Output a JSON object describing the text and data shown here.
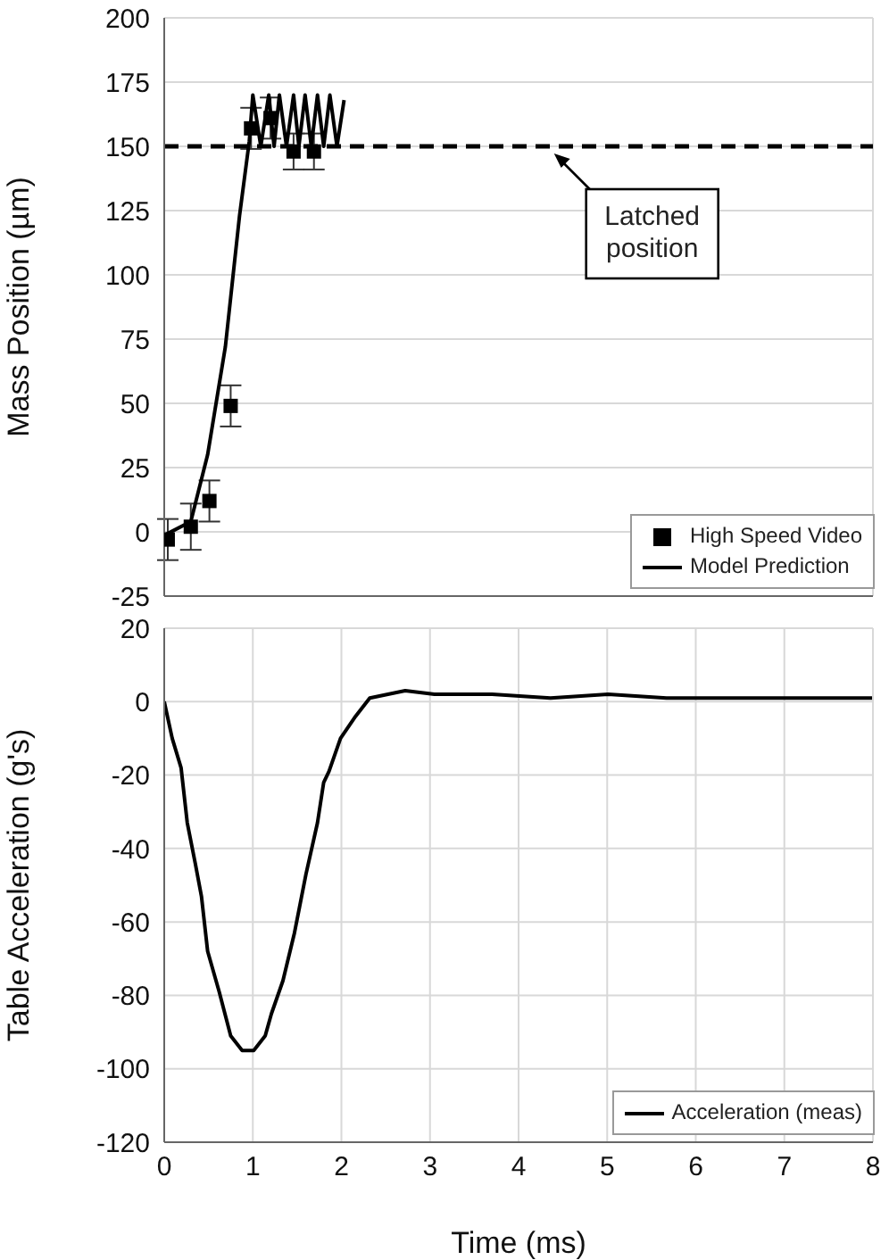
{
  "chart_data": [
    {
      "type": "line",
      "ylabel": "Mass Position (µm)",
      "xlim": [
        0,
        8
      ],
      "xticks": [
        0,
        1,
        2,
        3,
        4,
        5,
        6,
        7,
        8
      ],
      "ylim": [
        -25,
        200
      ],
      "yticks": [
        -25,
        0,
        25,
        50,
        75,
        100,
        125,
        150,
        175,
        200
      ],
      "tick_labels": "y",
      "grid": true,
      "legend": "bottom right",
      "series": [
        {
          "name": "High Speed Video",
          "type": "scatter",
          "marker": "square",
          "color": "#000000",
          "x": [
            0.04,
            0.3,
            0.51,
            0.75,
            0.98,
            1.2,
            1.46,
            1.69
          ],
          "values": [
            -3,
            2,
            12,
            49,
            157,
            161,
            148,
            148
          ],
          "errors": [
            8,
            9,
            8,
            8,
            8,
            8,
            7,
            7
          ]
        },
        {
          "name": "Model Prediction",
          "color": "#000000",
          "x": [
            0.02,
            0.3,
            0.49,
            0.69,
            0.85,
            0.96,
            1.0,
            1.09,
            1.18,
            1.24,
            1.3,
            1.38,
            1.46,
            1.52,
            1.59,
            1.66,
            1.73,
            1.8,
            1.87,
            1.95,
            2.03
          ],
          "values": [
            -1,
            4,
            30,
            72,
            123,
            152,
            170,
            150,
            170,
            150,
            170,
            150,
            170,
            150,
            170,
            150,
            170,
            150,
            170,
            150,
            168
          ]
        }
      ],
      "ref_lines": [
        {
          "axis": "y",
          "value": 150,
          "label": "Latched position",
          "color": "#000000",
          "line_style": "dashed"
        }
      ]
    },
    {
      "type": "line",
      "xlabel": "Time (ms)",
      "ylabel": "Table Acceleration (g's)",
      "xlim": [
        0,
        8
      ],
      "xticks": [
        0,
        1,
        2,
        3,
        4,
        5,
        6,
        7,
        8
      ],
      "ylim": [
        -120,
        20
      ],
      "yticks": [
        -120,
        -100,
        -80,
        -60,
        -40,
        -20,
        0,
        20
      ],
      "grid": true,
      "legend": "bottom right",
      "series": [
        {
          "name": "Acceleration (meas)",
          "color": "#000000",
          "x": [
            0,
            0.09,
            0.19,
            0.26,
            0.35,
            0.42,
            0.49,
            0.62,
            0.75,
            0.88,
            1.01,
            1.14,
            1.21,
            1.34,
            1.47,
            1.6,
            1.73,
            1.8,
            1.86,
            1.99,
            2.16,
            2.32,
            2.72,
            3.05,
            3.7,
            4.36,
            5.01,
            5.67,
            6.32,
            6.98,
            7.99
          ],
          "values": [
            0,
            -10,
            -18,
            -33,
            -44,
            -53,
            -68,
            -79,
            -91,
            -95,
            -95,
            -91,
            -85,
            -76,
            -63,
            -47,
            -33,
            -22,
            -19,
            -10,
            -4,
            1,
            3,
            2,
            2,
            1,
            2,
            1,
            1,
            1,
            1
          ]
        }
      ]
    }
  ]
}
